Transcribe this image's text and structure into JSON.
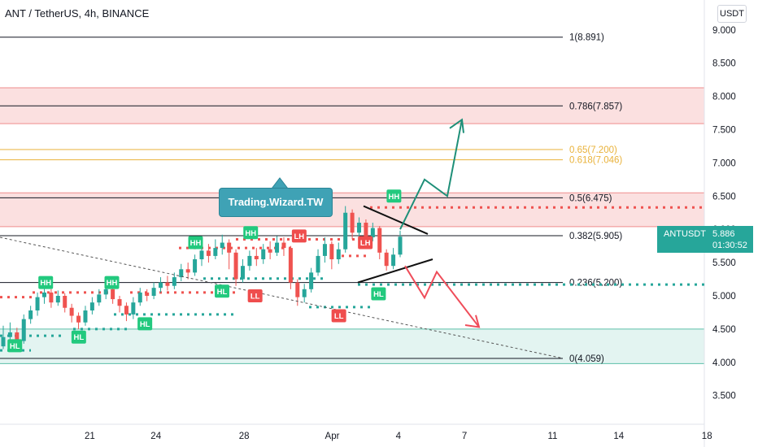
{
  "header": {
    "title": "ANT / TetherUS, 4h, BINANCE"
  },
  "axis": {
    "currency": "USDT"
  },
  "price_tag": {
    "symbol": "ANTUSDT",
    "price": "5.886",
    "countdown": "01:30:52"
  },
  "annotation": {
    "author": "Trading.Wizard.TW"
  },
  "colors": {
    "up": "#26a69a",
    "down": "#ef5350",
    "buy_arrow": "#1e8f78",
    "sell_arrow": "#ef4d5a",
    "zone_red": "#fbe0e0",
    "zone_green": "#e3f4f1",
    "fib_gold": "#e9b23a"
  },
  "chart_data": {
    "type": "candlestick",
    "y_range": [
      3.1,
      9.2
    ],
    "y_ticks": [
      "3.500",
      "4.000",
      "4.500",
      "5.000",
      "5.500",
      "6.000",
      "6.500",
      "7.000",
      "7.500",
      "8.000",
      "8.500",
      "9.000"
    ],
    "x_ticks": [
      {
        "label": "21",
        "day": 21
      },
      {
        "label": "24",
        "day": 24
      },
      {
        "label": "28",
        "day": 28
      },
      {
        "label": "Apr",
        "day": 32
      },
      {
        "label": "4",
        "day": 35
      },
      {
        "label": "7",
        "day": 38
      },
      {
        "label": "11",
        "day": 42
      },
      {
        "label": "14",
        "day": 45
      },
      {
        "label": "18",
        "day": 49
      }
    ],
    "fib_levels": [
      {
        "label": "1(8.891)",
        "value": 8.891,
        "color": "#131722"
      },
      {
        "label": "0.786(7.857)",
        "value": 7.857,
        "color": "#131722"
      },
      {
        "label": "0.65(7.200)",
        "value": 7.2,
        "color": "#e9b23a"
      },
      {
        "label": "0.618(7.046)",
        "value": 7.046,
        "color": "#e9b23a"
      },
      {
        "label": "0.5(6.475)",
        "value": 6.475,
        "color": "#131722"
      },
      {
        "label": "0.382(5.905)",
        "value": 5.905,
        "color": "#131722"
      },
      {
        "label": "0.236(5.200)",
        "value": 5.2,
        "color": "#131722"
      },
      {
        "label": "0(4.059)",
        "value": 4.059,
        "color": "#131722"
      }
    ],
    "zones": [
      {
        "type": "supply",
        "low": 7.59,
        "high": 8.13
      },
      {
        "type": "supply",
        "low": 6.04,
        "high": 6.55
      },
      {
        "type": "demand",
        "low": 3.98,
        "high": 4.5
      }
    ],
    "structure_labels": [
      {
        "text": "HL",
        "day": 17.6,
        "price": 4.25
      },
      {
        "text": "HH",
        "day": 19.0,
        "price": 5.2
      },
      {
        "text": "HL",
        "day": 20.5,
        "price": 4.38
      },
      {
        "text": "HH",
        "day": 22.0,
        "price": 5.2
      },
      {
        "text": "HL",
        "day": 23.5,
        "price": 4.58
      },
      {
        "text": "HH",
        "day": 25.8,
        "price": 5.8
      },
      {
        "text": "HL",
        "day": 27.0,
        "price": 5.07
      },
      {
        "text": "HH",
        "day": 28.3,
        "price": 5.95
      },
      {
        "text": "LL",
        "day": 28.5,
        "price": 5.0
      },
      {
        "text": "LH",
        "day": 30.5,
        "price": 5.9
      },
      {
        "text": "LL",
        "day": 32.3,
        "price": 4.7
      },
      {
        "text": "LH",
        "day": 33.5,
        "price": 5.8
      },
      {
        "text": "HL",
        "day": 34.1,
        "price": 5.03
      },
      {
        "text": "HH",
        "day": 34.8,
        "price": 6.5
      }
    ],
    "candles": [
      [
        4.24,
        4.38,
        4.55,
        4.2
      ],
      [
        4.38,
        4.45,
        4.6,
        4.3
      ],
      [
        4.45,
        4.32,
        4.52,
        4.25
      ],
      [
        4.32,
        4.65,
        4.72,
        4.28
      ],
      [
        4.65,
        4.78,
        4.85,
        4.58
      ],
      [
        4.78,
        4.98,
        5.05,
        4.7
      ],
      [
        4.98,
        5.05,
        5.12,
        4.88
      ],
      [
        5.05,
        4.9,
        5.1,
        4.82
      ],
      [
        4.9,
        5.0,
        5.08,
        4.85
      ],
      [
        5.0,
        4.82,
        5.04,
        4.75
      ],
      [
        4.82,
        4.7,
        4.88,
        4.6
      ],
      [
        4.7,
        4.6,
        4.75,
        4.5
      ],
      [
        4.6,
        4.78,
        4.85,
        4.55
      ],
      [
        4.78,
        4.9,
        4.98,
        4.72
      ],
      [
        4.9,
        5.02,
        5.1,
        4.85
      ],
      [
        5.02,
        5.1,
        5.18,
        4.95
      ],
      [
        5.1,
        4.95,
        5.15,
        4.88
      ],
      [
        4.95,
        4.85,
        5.0,
        4.75
      ],
      [
        4.85,
        4.72,
        4.9,
        4.62
      ],
      [
        4.72,
        4.9,
        4.98,
        4.65
      ],
      [
        4.9,
        5.05,
        5.12,
        4.85
      ],
      [
        5.05,
        5.0,
        5.1,
        4.92
      ],
      [
        5.0,
        5.12,
        5.2,
        4.95
      ],
      [
        5.12,
        5.2,
        5.28,
        5.05
      ],
      [
        5.2,
        5.15,
        5.3,
        5.08
      ],
      [
        5.15,
        5.28,
        5.35,
        5.1
      ],
      [
        5.28,
        5.4,
        5.48,
        5.22
      ],
      [
        5.4,
        5.35,
        5.5,
        5.25
      ],
      [
        5.35,
        5.55,
        5.62,
        5.3
      ],
      [
        5.55,
        5.68,
        5.75,
        5.45
      ],
      [
        5.68,
        5.6,
        5.78,
        5.5
      ],
      [
        5.6,
        5.72,
        5.85,
        5.55
      ],
      [
        5.72,
        5.8,
        5.92,
        5.62
      ],
      [
        5.8,
        5.65,
        5.85,
        5.4
      ],
      [
        5.65,
        5.25,
        5.7,
        5.15
      ],
      [
        5.25,
        5.45,
        5.55,
        5.2
      ],
      [
        5.45,
        5.6,
        5.68,
        5.38
      ],
      [
        5.6,
        5.55,
        5.72,
        5.45
      ],
      [
        5.55,
        5.7,
        5.78,
        5.48
      ],
      [
        5.7,
        5.65,
        5.82,
        5.55
      ],
      [
        5.65,
        5.8,
        5.9,
        5.6
      ],
      [
        5.8,
        5.72,
        5.88,
        5.6
      ],
      [
        5.72,
        5.2,
        5.75,
        5.1
      ],
      [
        5.2,
        4.98,
        5.25,
        4.85
      ],
      [
        4.98,
        5.1,
        5.18,
        4.9
      ],
      [
        5.1,
        5.35,
        5.42,
        5.05
      ],
      [
        5.35,
        5.6,
        5.7,
        5.3
      ],
      [
        5.6,
        5.78,
        5.88,
        5.5
      ],
      [
        5.78,
        5.55,
        5.82,
        5.4
      ],
      [
        5.55,
        5.7,
        5.8,
        5.48
      ],
      [
        5.7,
        6.25,
        6.35,
        5.65
      ],
      [
        6.25,
        5.95,
        6.3,
        5.85
      ],
      [
        5.95,
        6.1,
        6.18,
        5.85
      ],
      [
        6.1,
        5.88,
        6.15,
        5.8
      ],
      [
        5.88,
        6.02,
        6.1,
        5.82
      ],
      [
        6.02,
        5.65,
        6.05,
        5.55
      ],
      [
        5.65,
        5.45,
        5.7,
        5.38
      ],
      [
        5.45,
        5.62,
        5.72,
        5.4
      ],
      [
        5.62,
        5.89,
        5.98,
        5.58
      ]
    ]
  }
}
